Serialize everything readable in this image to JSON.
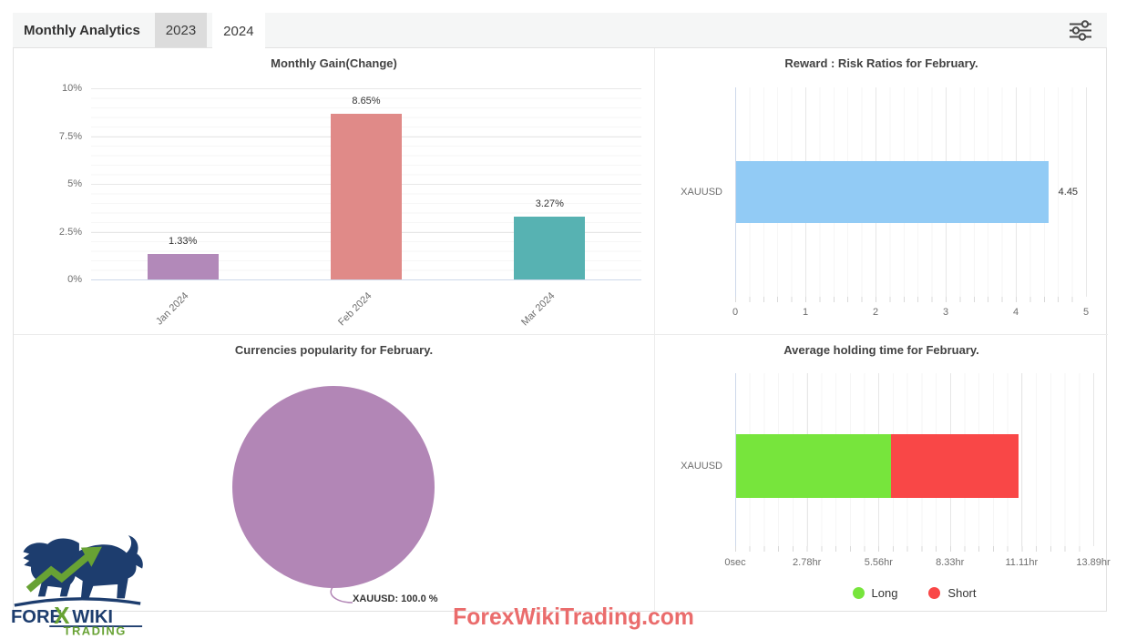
{
  "header": {
    "title": "Monthly Analytics",
    "tabs": [
      {
        "label": "2023",
        "active": false
      },
      {
        "label": "2024",
        "active": true
      }
    ],
    "filter_icon": "sliders-icon"
  },
  "watermark": "ForexWikiTrading.com",
  "logo": {
    "part1": "FORE",
    "part2": "X",
    "part3": "WIKI",
    "part4": "TRADING"
  },
  "colors": {
    "header_bg": "#f5f6f6",
    "inactive_tab_bg": "#dcdcdc",
    "grid_major": "#e7e7e7",
    "grid_minor": "#f6f6f6",
    "axis_line": "#cdd8ea",
    "watermark": "#ea6c6c",
    "logo_navy": "#1d3d6e",
    "logo_green": "#68a234"
  },
  "chart_data": [
    {
      "id": "monthly-gain",
      "type": "bar",
      "title": "Monthly Gain(Change)",
      "categories": [
        "Jan 2024",
        "Feb 2024",
        "Mar 2024"
      ],
      "values": [
        1.33,
        8.65,
        3.27
      ],
      "data_labels": [
        "1.33%",
        "8.65%",
        "3.27%"
      ],
      "bar_colors": [
        "#b289b9",
        "#e08a88",
        "#57b2b2"
      ],
      "ylim": [
        0,
        10
      ],
      "yticks": [
        0,
        2.5,
        5,
        7.5,
        10
      ],
      "ytick_labels": [
        "0%",
        "2.5%",
        "5%",
        "7.5%",
        "10%"
      ],
      "grid": true,
      "legend_position": "none"
    },
    {
      "id": "reward-risk",
      "type": "bar-horizontal",
      "title": "Reward : Risk Ratios for February.",
      "categories": [
        "XAUUSD"
      ],
      "values": [
        4.45
      ],
      "data_labels": [
        "4.45"
      ],
      "bar_colors": [
        "#92cbf5"
      ],
      "xlim": [
        0,
        5
      ],
      "xticks": [
        0,
        1,
        2,
        3,
        4,
        5
      ],
      "xtick_labels": [
        "0",
        "1",
        "2",
        "3",
        "4",
        "5"
      ],
      "grid": true,
      "legend_position": "none"
    },
    {
      "id": "currencies-popularity",
      "type": "pie",
      "title": "Currencies popularity for February.",
      "slices": [
        {
          "label": "XAUUSD",
          "value": 100.0,
          "color": "#b286b6",
          "callout": "XAUUSD: 100.0 %"
        }
      ]
    },
    {
      "id": "average-holding-time",
      "type": "bar-horizontal-stacked",
      "title": "Average holding time for February.",
      "categories": [
        "XAUUSD"
      ],
      "series": [
        {
          "name": "Long",
          "color": "#77e53c",
          "value_hr": 6.0
        },
        {
          "name": "Short",
          "color": "#f94747",
          "value_hr": 4.95
        }
      ],
      "xlim_hr": [
        0,
        13.89
      ],
      "xticks_hr": [
        0,
        2.78,
        5.56,
        8.33,
        11.11,
        13.89
      ],
      "xtick_labels": [
        "0sec",
        "2.78hr",
        "5.56hr",
        "8.33hr",
        "11.11hr",
        "13.89hr"
      ],
      "legend": [
        {
          "label": "Long",
          "color": "#77e53c"
        },
        {
          "label": "Short",
          "color": "#f94747"
        }
      ],
      "legend_position": "bottom-center"
    }
  ]
}
